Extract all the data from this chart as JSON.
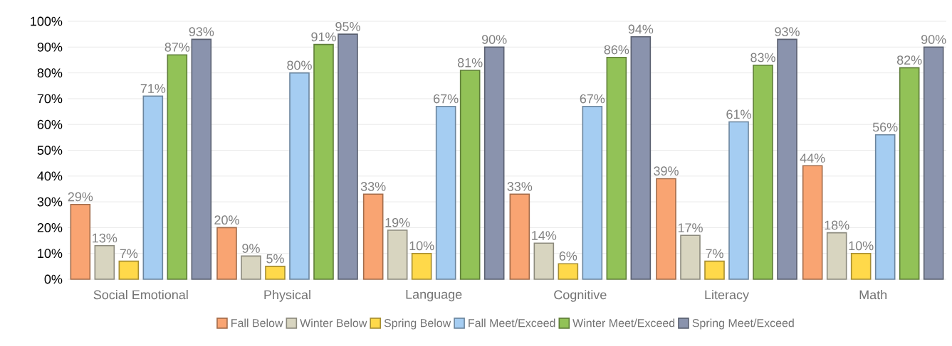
{
  "chart_data": {
    "type": "bar",
    "categories": [
      "Social Emotional",
      "Physical",
      "Language",
      "Cognitive",
      "Literacy",
      "Math"
    ],
    "series": [
      {
        "name": "Fall Below",
        "color": "#f9a472",
        "values": [
          29,
          20,
          33,
          33,
          39,
          44
        ],
        "value_labels": [
          "29%",
          "20%",
          "33%",
          "33%",
          "39%",
          "44%"
        ]
      },
      {
        "name": "Winter Below",
        "color": "#d8d5c0",
        "values": [
          13,
          9,
          19,
          14,
          17,
          18
        ],
        "value_labels": [
          "13%",
          "9%",
          "19%",
          "14%",
          "17%",
          "18%"
        ]
      },
      {
        "name": "Spring Below",
        "color": "#ffd94a",
        "values": [
          7,
          5,
          10,
          6,
          7,
          10
        ],
        "value_labels": [
          "7%",
          "5%",
          "10%",
          "6%",
          "7%",
          "10%"
        ]
      },
      {
        "name": "Fall Meet/Exceed",
        "color": "#a5cdf2",
        "values": [
          71,
          80,
          67,
          67,
          61,
          56
        ],
        "value_labels": [
          "71%",
          "80%",
          "67%",
          "67%",
          "61%",
          "56%"
        ]
      },
      {
        "name": "Winter Meet/Exceed",
        "color": "#92c257",
        "values": [
          87,
          91,
          81,
          86,
          83,
          82
        ],
        "value_labels": [
          "87%",
          "91%",
          "81%",
          "86%",
          "83%",
          "82%"
        ]
      },
      {
        "name": "Spring Meet/Exceed",
        "color": "#8a93ad",
        "values": [
          93,
          95,
          90,
          94,
          93,
          90
        ],
        "value_labels": [
          "93%",
          "95%",
          "90%",
          "94%",
          "93%",
          "90%"
        ]
      }
    ],
    "ylim": [
      0,
      100
    ],
    "yticks": [
      {
        "value": 0,
        "label": "0%"
      },
      {
        "value": 10,
        "label": "10%"
      },
      {
        "value": 20,
        "label": "20%"
      },
      {
        "value": 30,
        "label": "30%"
      },
      {
        "value": 40,
        "label": "40%"
      },
      {
        "value": 50,
        "label": "50%"
      },
      {
        "value": 60,
        "label": "60%"
      },
      {
        "value": 70,
        "label": "70%"
      },
      {
        "value": 80,
        "label": "80%"
      },
      {
        "value": 90,
        "label": "90%"
      },
      {
        "value": 100,
        "label": "100%"
      }
    ],
    "grid": "y",
    "legend": "bottom"
  }
}
